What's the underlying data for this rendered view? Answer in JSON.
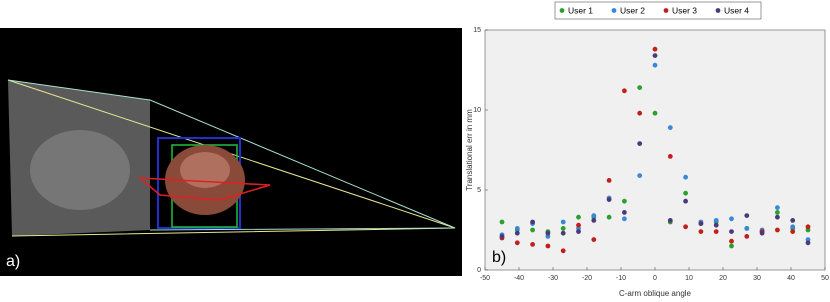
{
  "panels": {
    "a_label": "a)",
    "b_label": "b)"
  },
  "chart_data": {
    "type": "scatter",
    "x_label": "C-arm oblique angle",
    "y_label": "Translational err in mm",
    "x": [
      -45,
      -40.5,
      -36,
      -31.5,
      -27,
      -22.5,
      -18,
      -13.5,
      -9,
      -4.5,
      0,
      4.5,
      9,
      13.5,
      18,
      22.5,
      27,
      31.5,
      36,
      40.5,
      45
    ],
    "series": [
      {
        "name": "User 1",
        "color": "#2ca02c",
        "values": [
          3.0,
          2.5,
          2.5,
          2.4,
          2.6,
          3.3,
          3.3,
          3.3,
          4.3,
          11.4,
          9.8,
          3.0,
          4.8,
          2.9,
          3.0,
          1.5,
          2.6,
          2.4,
          3.6,
          2.6,
          2.5
        ]
      },
      {
        "name": "User 2",
        "color": "#3a87d8",
        "values": [
          2.2,
          2.6,
          2.9,
          2.1,
          3.0,
          2.6,
          3.4,
          4.5,
          3.2,
          5.9,
          12.8,
          8.9,
          5.8,
          3.0,
          3.1,
          3.2,
          2.6,
          2.5,
          3.9,
          2.7,
          1.9
        ]
      },
      {
        "name": "User 3",
        "color": "#c0201a",
        "values": [
          2.0,
          1.7,
          1.6,
          1.5,
          1.2,
          2.8,
          1.9,
          5.6,
          11.2,
          9.8,
          13.8,
          7.1,
          2.7,
          2.4,
          2.4,
          1.8,
          2.1,
          2.4,
          2.5,
          2.4,
          2.7
        ]
      },
      {
        "name": "User 4",
        "color": "#4b3a7a",
        "values": [
          2.1,
          2.3,
          3.0,
          2.3,
          2.3,
          2.4,
          3.1,
          4.4,
          3.6,
          7.9,
          13.4,
          3.1,
          4.3,
          2.9,
          2.8,
          2.4,
          3.4,
          2.3,
          3.3,
          3.1,
          1.7
        ]
      }
    ],
    "xlim": [
      -50,
      50
    ],
    "xticks": [
      -50,
      -40,
      -30,
      -20,
      -10,
      0,
      10,
      20,
      30,
      40,
      50
    ],
    "ylim": [
      0,
      15
    ],
    "yticks": [
      0,
      5,
      10,
      15
    ]
  }
}
